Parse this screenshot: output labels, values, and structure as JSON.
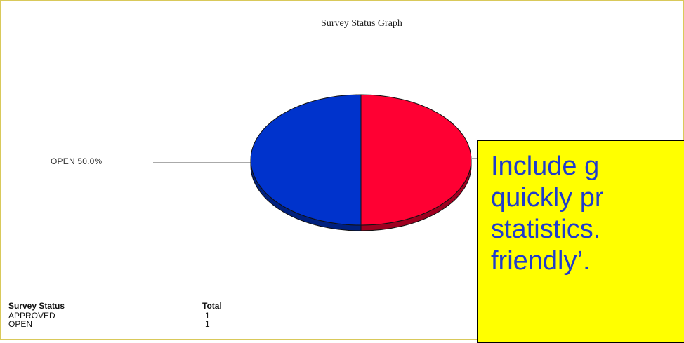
{
  "chart_data": {
    "type": "pie",
    "title": "Survey Status Graph",
    "slices": [
      {
        "label": "APPROVED",
        "value": 1,
        "percent": 50.0,
        "color": "#ff0033"
      },
      {
        "label": "OPEN",
        "value": 1,
        "percent": 50.0,
        "color": "#0033cc"
      }
    ],
    "visible_labels": [
      "OPEN 50.0%"
    ],
    "table": {
      "headers": [
        "Survey Status",
        "Total"
      ],
      "rows": [
        [
          "APPROVED",
          "1"
        ],
        [
          "OPEN",
          "1"
        ]
      ]
    }
  },
  "callout": {
    "lines": [
      "Include g",
      "quickly pr",
      "statistics.",
      "friendly’."
    ],
    "background": "#ffff00",
    "text_color": "#1f3ccc"
  }
}
